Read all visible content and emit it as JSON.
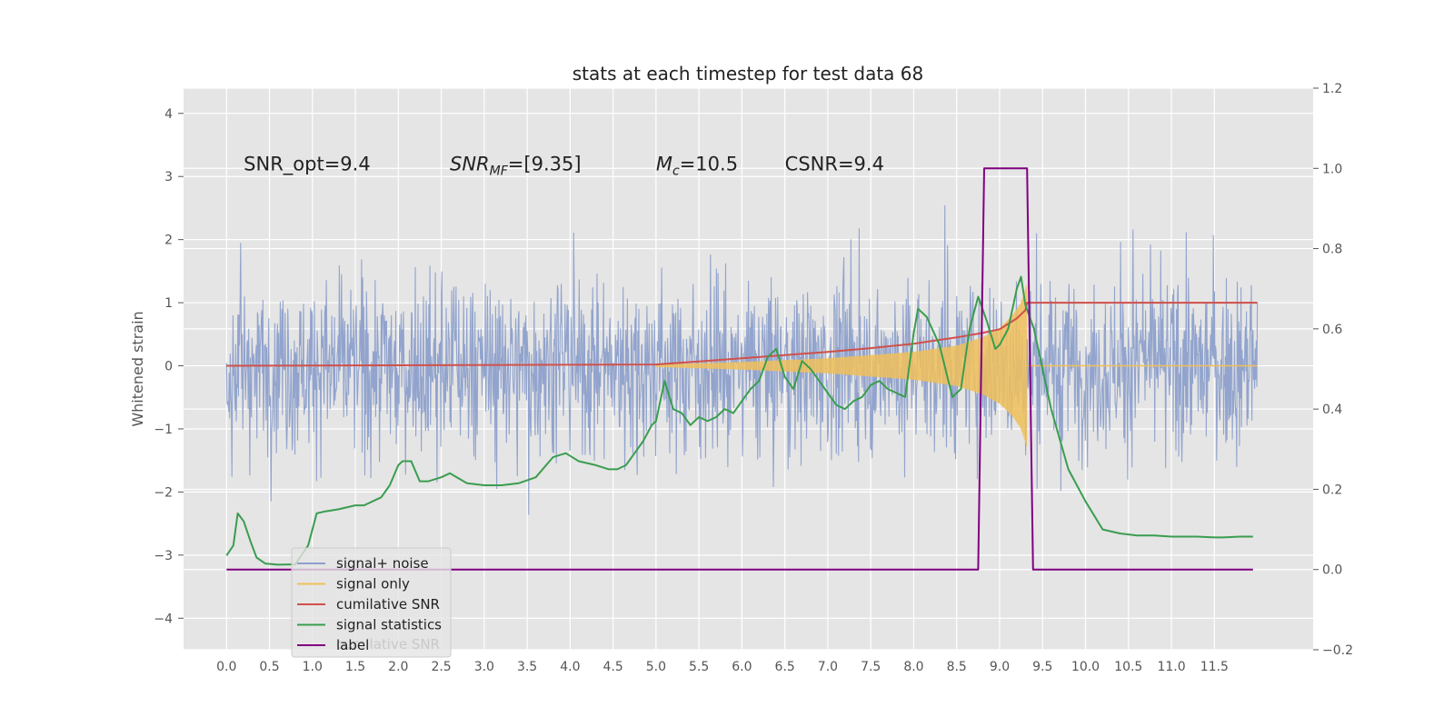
{
  "chart_data": {
    "type": "line",
    "title": "stats at each timestep for test data 68",
    "ylabel": "Whitened strain",
    "y2label": "",
    "xlim": [
      -0.5,
      12.65
    ],
    "ylim": [
      -4.5,
      4.4
    ],
    "y2lim": [
      -0.2,
      1.2
    ],
    "x_ticks": [
      "0.0",
      "0.5",
      "1.0",
      "1.5",
      "2.0",
      "2.5",
      "3.0",
      "3.5",
      "4.0",
      "4.5",
      "5.0",
      "5.5",
      "6.0",
      "6.5",
      "7.0",
      "7.5",
      "8.0",
      "8.5",
      "9.0",
      "9.5",
      "10.0",
      "10.5",
      "11.0",
      "11.5"
    ],
    "y_ticks": [
      "4",
      "3",
      "2",
      "1",
      "0",
      "−1",
      "−2",
      "−3",
      "−4"
    ],
    "y2_ticks": [
      "1.2",
      "1.0",
      "0.8",
      "0.6",
      "0.4",
      "0.2",
      "0.0",
      "−0.2"
    ],
    "grid": true,
    "legend_position": "lower-left",
    "annotations": [
      {
        "text": "SNR_opt=9.4",
        "x": 0.2,
        "y": 3.1
      },
      {
        "text": "SNR",
        "sub": "MF",
        "suffix": "=[9.35]",
        "x": 2.6,
        "y": 3.1
      },
      {
        "text": "M",
        "sub": "c",
        "suffix": "=10.5",
        "x": 5.0,
        "y": 3.1
      },
      {
        "text": "CSNR=9.4",
        "x": 6.5,
        "y": 3.1
      }
    ],
    "ghost_legend_text": "cumilative SNR",
    "series": [
      {
        "name": "signal+ noise",
        "color": "#8da0cb",
        "axis": "left",
        "kind": "noise",
        "x_range": [
          0.0,
          12.0
        ],
        "amplitude": 2.5,
        "extreme": 4.1
      },
      {
        "name": "signal only",
        "color": "#f0c05a",
        "axis": "left",
        "kind": "chirp",
        "x_range": [
          5.0,
          9.32
        ],
        "envelope": {
          "x": [
            5.0,
            6.0,
            7.0,
            8.0,
            8.5,
            8.8,
            9.0,
            9.15,
            9.25,
            9.32
          ],
          "amp": [
            0.02,
            0.06,
            0.12,
            0.22,
            0.32,
            0.45,
            0.6,
            0.8,
            1.0,
            1.3
          ]
        }
      },
      {
        "name": "cumilative SNR",
        "color": "#d0504a",
        "axis": "left",
        "x": [
          0.0,
          5.0,
          5.5,
          6.0,
          6.5,
          7.0,
          7.5,
          8.0,
          8.5,
          8.8,
          9.0,
          9.2,
          9.3,
          9.32,
          12.0
        ],
        "y": [
          0.0,
          0.02,
          0.07,
          0.12,
          0.17,
          0.22,
          0.28,
          0.35,
          0.45,
          0.52,
          0.58,
          0.75,
          0.88,
          1.0,
          1.0
        ]
      },
      {
        "name": "signal statistics",
        "color": "#3a9d4f",
        "axis": "right",
        "x": [
          0.0,
          0.08,
          0.13,
          0.2,
          0.28,
          0.35,
          0.45,
          0.6,
          0.8,
          0.95,
          1.05,
          1.15,
          1.3,
          1.5,
          1.6,
          1.7,
          1.8,
          1.9,
          2.0,
          2.05,
          2.15,
          2.25,
          2.35,
          2.5,
          2.6,
          2.8,
          3.0,
          3.2,
          3.4,
          3.6,
          3.8,
          3.95,
          4.1,
          4.3,
          4.45,
          4.55,
          4.65,
          4.75,
          4.85,
          4.95,
          5.0,
          5.1,
          5.2,
          5.3,
          5.4,
          5.5,
          5.6,
          5.7,
          5.8,
          5.9,
          6.0,
          6.1,
          6.2,
          6.3,
          6.4,
          6.5,
          6.6,
          6.7,
          6.8,
          6.9,
          7.0,
          7.1,
          7.2,
          7.3,
          7.4,
          7.5,
          7.6,
          7.7,
          7.8,
          7.9,
          8.0,
          8.05,
          8.15,
          8.3,
          8.45,
          8.55,
          8.65,
          8.75,
          8.85,
          8.95,
          9.0,
          9.1,
          9.2,
          9.25,
          9.3,
          9.4,
          9.5,
          9.6,
          9.8,
          10.0,
          10.2,
          10.4,
          10.6,
          10.8,
          11.0,
          11.3,
          11.5,
          11.6,
          11.8,
          11.95
        ],
        "y": [
          0.035,
          0.06,
          0.14,
          0.12,
          0.07,
          0.03,
          0.015,
          0.012,
          0.013,
          0.06,
          0.14,
          0.145,
          0.15,
          0.16,
          0.16,
          0.17,
          0.18,
          0.21,
          0.26,
          0.27,
          0.27,
          0.22,
          0.22,
          0.23,
          0.24,
          0.215,
          0.21,
          0.21,
          0.215,
          0.23,
          0.28,
          0.29,
          0.27,
          0.26,
          0.25,
          0.25,
          0.26,
          0.29,
          0.32,
          0.36,
          0.37,
          0.47,
          0.4,
          0.39,
          0.36,
          0.38,
          0.37,
          0.38,
          0.4,
          0.39,
          0.42,
          0.45,
          0.47,
          0.53,
          0.55,
          0.48,
          0.45,
          0.52,
          0.5,
          0.47,
          0.44,
          0.41,
          0.4,
          0.42,
          0.43,
          0.46,
          0.47,
          0.45,
          0.44,
          0.43,
          0.59,
          0.65,
          0.63,
          0.56,
          0.43,
          0.45,
          0.6,
          0.68,
          0.62,
          0.55,
          0.56,
          0.6,
          0.7,
          0.73,
          0.66,
          0.6,
          0.5,
          0.4,
          0.25,
          0.17,
          0.1,
          0.09,
          0.085,
          0.085,
          0.082,
          0.082,
          0.08,
          0.08,
          0.082,
          0.082
        ]
      },
      {
        "name": "label",
        "color": "#800080",
        "axis": "right",
        "x": [
          0.0,
          8.75,
          8.82,
          9.32,
          9.39,
          11.95
        ],
        "y": [
          0.0,
          0.0,
          1.0,
          1.0,
          0.0,
          0.0
        ]
      }
    ]
  }
}
